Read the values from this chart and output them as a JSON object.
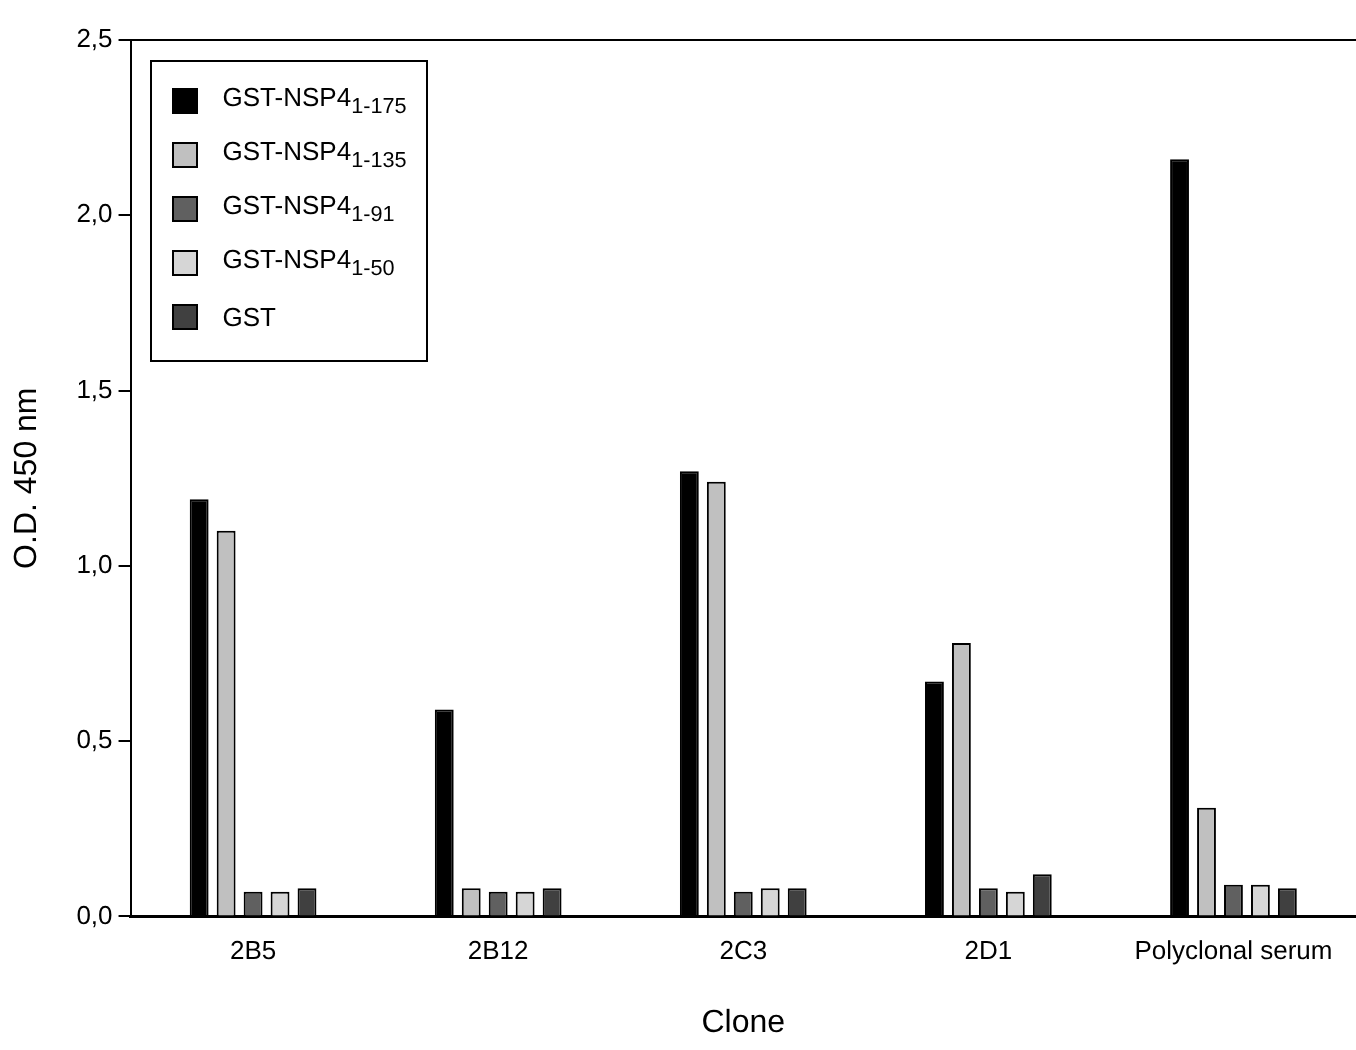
{
  "chart_data": {
    "type": "bar",
    "xlabel": "Clone",
    "ylabel": "O.D. 450 nm",
    "categories": [
      "2B5",
      "2B12",
      "2C3",
      "2D1",
      "Polyclonal serum"
    ],
    "series": [
      {
        "name": "GST-NSP4$_{1-175}$",
        "color": "#000000",
        "values": [
          1.19,
          0.59,
          1.27,
          0.67,
          2.16
        ]
      },
      {
        "name": "GST-NSP4$_{1-135}$",
        "color": "#c0c0c0",
        "values": [
          1.1,
          0.08,
          1.24,
          0.78,
          0.31
        ]
      },
      {
        "name": "GST-NSP4$_{1-91}$",
        "color": "#606060",
        "values": [
          0.07,
          0.07,
          0.07,
          0.08,
          0.09
        ]
      },
      {
        "name": "GST-NSP4$_{1-50}$",
        "color": "#d6d6d6",
        "values": [
          0.07,
          0.07,
          0.08,
          0.07,
          0.09
        ]
      },
      {
        "name": "GST",
        "color": "#404040",
        "values": [
          0.08,
          0.08,
          0.08,
          0.12,
          0.08
        ]
      }
    ],
    "ylim": [
      0,
      2.5
    ],
    "yticks": [
      {
        "value": 0,
        "label": "0,0"
      },
      {
        "value": 0.5,
        "label": "0,5"
      },
      {
        "value": 1,
        "label": "1,0"
      },
      {
        "value": 1.5,
        "label": "1,5"
      },
      {
        "value": 2,
        "label": "2,0"
      },
      {
        "value": 2.5,
        "label": "2,5"
      }
    ],
    "grid": false,
    "legend": "top left"
  }
}
